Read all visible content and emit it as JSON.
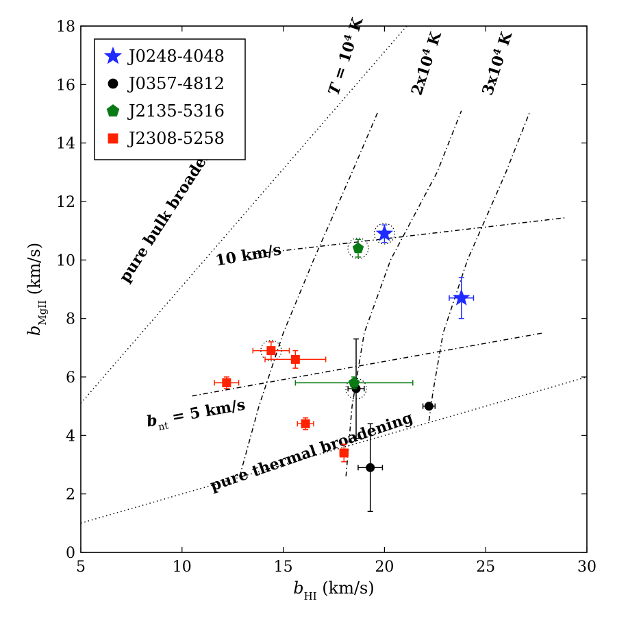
{
  "chart_data": {
    "type": "scatter",
    "xlim": [
      5,
      30
    ],
    "ylim": [
      0,
      18
    ],
    "xticks": [
      5,
      10,
      15,
      20,
      25,
      30
    ],
    "yticks": [
      0,
      2,
      4,
      6,
      8,
      10,
      12,
      14,
      16,
      18
    ],
    "xlabel": {
      "main": "b",
      "sub": "HI",
      "units": " (km/s)"
    },
    "ylabel": {
      "main": "b",
      "sub": "MgII",
      "units": " (km/s)"
    },
    "legend_position": "top-left",
    "series": [
      {
        "name": "J0248-4048",
        "marker": "star",
        "color": "#1f2bff",
        "points": [
          {
            "x": 20.0,
            "y": 10.9,
            "xerr": 0.0,
            "yerr": 0.3,
            "circled": true
          },
          {
            "x": 23.8,
            "y": 8.7,
            "xerr": 0.6,
            "yerr": 0.7,
            "circled": false
          }
        ]
      },
      {
        "name": "J0357-4812",
        "marker": "circle",
        "color": "#000000",
        "points": [
          {
            "x": 18.6,
            "y": 5.6,
            "xerr": 0.4,
            "yerr": 1.7,
            "circled": true
          },
          {
            "x": 22.2,
            "y": 5.0,
            "xerr": 0.3,
            "yerr": 0.0,
            "circled": false
          },
          {
            "x": 19.3,
            "y": 2.9,
            "xerr": 0.6,
            "yerr": 1.5,
            "circled": false
          }
        ]
      },
      {
        "name": "J2135-5316",
        "marker": "pentagon",
        "color": "#0a7a14",
        "points": [
          {
            "x": 18.7,
            "y": 10.4,
            "xerr": 0.0,
            "yerr": 0.3,
            "circled": true
          },
          {
            "x": 18.5,
            "y": 5.8,
            "xerr": 2.9,
            "yerr": 0.2,
            "circled": false
          }
        ]
      },
      {
        "name": "J2308-5258",
        "marker": "square",
        "color": "#ff2200",
        "points": [
          {
            "x": 14.4,
            "y": 6.9,
            "xerr": 0.9,
            "yerr": 0.3,
            "circled": true
          },
          {
            "x": 15.6,
            "y": 6.6,
            "xerr": 1.5,
            "yerr": 0.3,
            "circled": false
          },
          {
            "x": 12.2,
            "y": 5.8,
            "xerr": 0.6,
            "yerr": 0.2,
            "circled": false
          },
          {
            "x": 16.1,
            "y": 4.4,
            "xerr": 0.4,
            "yerr": 0.2,
            "circled": false
          },
          {
            "x": 18.0,
            "y": 3.4,
            "xerr": 0.2,
            "yerr": 0.3,
            "circled": false
          }
        ]
      }
    ],
    "reference_lines": [
      {
        "name": "pure-bulk-broadening",
        "style": "dotted",
        "x": [
          5,
          21.1
        ],
        "y": [
          5.1,
          18
        ],
        "label": "pure bulk broadening",
        "label_at": [
          7.3,
          9.2
        ],
        "label_angle": -57
      },
      {
        "name": "pure-thermal-broadening",
        "style": "dotted",
        "x": [
          5,
          30
        ],
        "y": [
          1.0,
          6.0
        ],
        "label": "pure thermal broadening",
        "label_at": [
          11.5,
          2.1
        ],
        "label_angle": -19
      },
      {
        "name": "bnt-5",
        "style": "dashdot",
        "x": [
          10.5,
          27.8
        ],
        "y": [
          5.35,
          7.5
        ],
        "label_main": "b",
        "label_sub": "nt",
        "label_rest": " = 5 km/s",
        "label_at": [
          8.3,
          4.3
        ],
        "label_angle": -10
      },
      {
        "name": "bnt-10",
        "style": "dashdot",
        "x": [
          13.5,
          29.0
        ],
        "y": [
          10.2,
          11.45
        ],
        "label": "10 km/s",
        "label_at": [
          11.7,
          9.8
        ],
        "label_angle": -10
      },
      {
        "name": "T-1e4",
        "style": "dashdot",
        "x": [
          12.85,
          13.8,
          15.0,
          16.5,
          18.4,
          19.7
        ],
        "y": [
          2.6,
          5.0,
          7.5,
          10.0,
          13.0,
          15.1
        ],
        "label_prefix": "T",
        "label": " = 10",
        "label_sup": "4",
        "label_suffix": " K",
        "label_at": [
          17.7,
          15.6
        ],
        "label_angle": -72
      },
      {
        "name": "T-2e4",
        "style": "dashdot",
        "x": [
          18.1,
          18.4,
          19.0,
          20.3,
          22.6,
          23.8
        ],
        "y": [
          2.6,
          5.0,
          7.5,
          10.0,
          13.0,
          15.1
        ],
        "label": "2x10",
        "label_sup": "4",
        "label_suffix": " K",
        "label_at": [
          21.8,
          15.6
        ],
        "label_angle": -72
      },
      {
        "name": "T-3e4",
        "style": "dashdot",
        "x": [
          22.2,
          22.4,
          22.9,
          24.1,
          26.0,
          27.2
        ],
        "y": [
          4.5,
          5.5,
          7.5,
          10.0,
          13.0,
          15.1
        ],
        "label": "3x10",
        "label_sup": "4",
        "label_suffix": " K",
        "label_at": [
          25.3,
          15.6
        ],
        "label_angle": -72
      }
    ]
  }
}
